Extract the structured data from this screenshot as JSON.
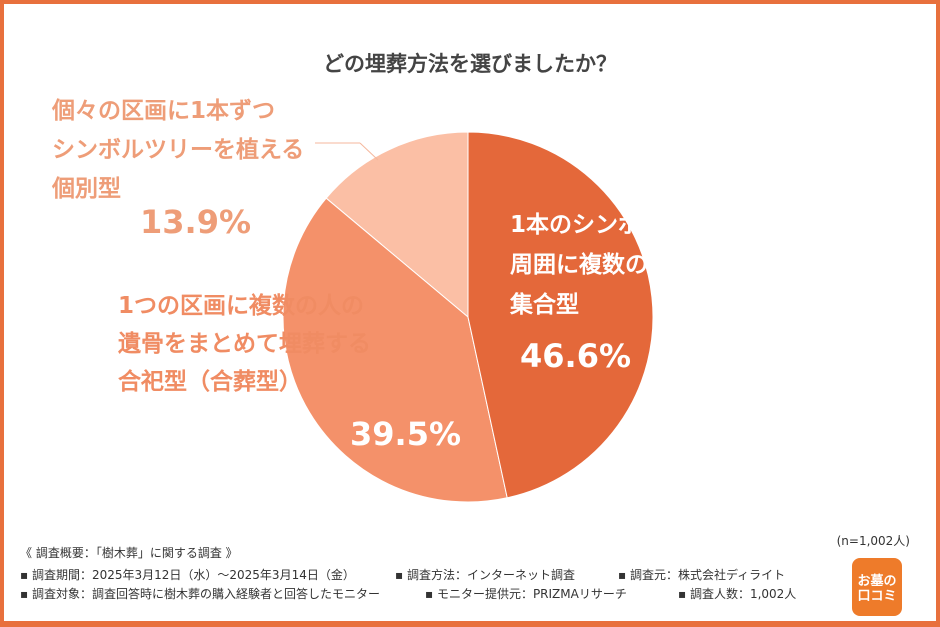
{
  "chart_data": {
    "type": "pie",
    "title": "どの埋葬方法を選びましたか？",
    "slices": [
      {
        "label": "1本のシンボルツリーの周囲に複数の区画がある集合型",
        "lines": [
          "1本のシンボルツリーの",
          "周囲に複数の区画がある",
          "集合型"
        ],
        "value": 46.6,
        "pct": "46.6%",
        "color": "#E4683A"
      },
      {
        "label": "1つの区画に複数の人の遺骨をまとめて埋葬する合祀型（合葬型）",
        "lines": [
          "1つの区画に複数の人の",
          "遺骨をまとめて埋葬する",
          "合祀型（合葬型）"
        ],
        "value": 39.5,
        "pct": "39.5%",
        "color": "#F4916A"
      },
      {
        "label": "個々の区画に1本ずつシンボルツリーを植える個別型",
        "lines": [
          "個々の区画に1本ずつ",
          "シンボルツリーを植える",
          "個別型"
        ],
        "value": 13.9,
        "pct": "13.9%",
        "color": "#FBBFA5"
      }
    ],
    "start": "top",
    "direction": "clockwise"
  },
  "note": "(n=1,002人)",
  "footer": {
    "heading": "《 調査概要：「樹木葬」に関する調査 》",
    "row1": [
      "▪ 調査期間：2025年3月12日（水）〜2025年3月14日（金）",
      "▪ 調査方法：インターネット調査",
      "▪ 調査元：株式会社ディライト"
    ],
    "row2": [
      "▪ 調査対象：調査回答時に樹木葬の購入経験者と回答したモニター",
      "▪ モニター提供元：PRIZMAリサーチ",
      "▪ 調査人数：1,002人"
    ]
  },
  "logo": {
    "text": "お墓の口コミ",
    "line1": "お墓の",
    "line2": "口コミ"
  }
}
